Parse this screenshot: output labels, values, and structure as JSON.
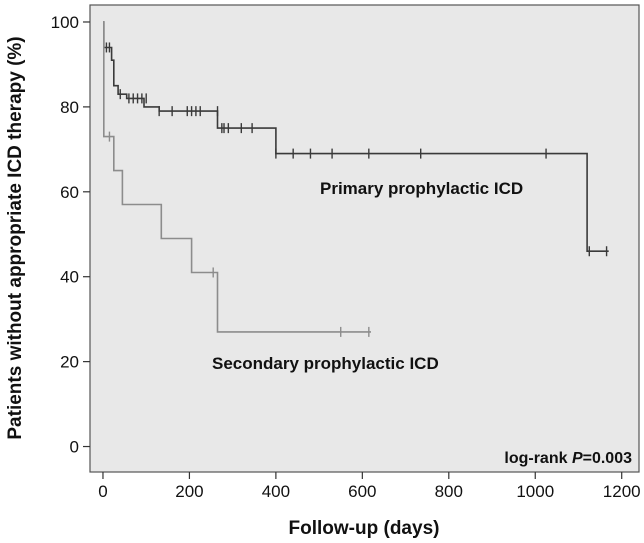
{
  "chart_data": {
    "type": "line",
    "step": true,
    "title": "",
    "xlabel": "Follow-up (days)",
    "ylabel": "Patients without appropriate ICD therapy (%)",
    "xlim": [
      -30,
      1240
    ],
    "ylim": [
      -6,
      104
    ],
    "xticks": [
      0,
      200,
      400,
      600,
      800,
      1000,
      1200
    ],
    "yticks": [
      0,
      20,
      40,
      60,
      80,
      100
    ],
    "grid": false,
    "background": "#e8e8e8",
    "annotation": {
      "prefix": "log-rank ",
      "italic": "P",
      "suffix": "=0.003"
    },
    "series": [
      {
        "name": "Primary prophylactic ICD",
        "color": "#3a3a3a",
        "steps": [
          [
            0,
            100
          ],
          [
            2,
            94
          ],
          [
            20,
            91
          ],
          [
            25,
            85
          ],
          [
            35,
            83
          ],
          [
            55,
            82
          ],
          [
            95,
            80
          ],
          [
            130,
            79
          ],
          [
            265,
            75
          ],
          [
            400,
            69
          ],
          [
            1120,
            46
          ],
          [
            1170,
            46
          ]
        ],
        "censored": [
          [
            8,
            94
          ],
          [
            15,
            94
          ],
          [
            40,
            83
          ],
          [
            60,
            82
          ],
          [
            70,
            82
          ],
          [
            80,
            82
          ],
          [
            90,
            82
          ],
          [
            100,
            82
          ],
          [
            130,
            79
          ],
          [
            160,
            79
          ],
          [
            195,
            79
          ],
          [
            205,
            79
          ],
          [
            215,
            79
          ],
          [
            225,
            79
          ],
          [
            265,
            79
          ],
          [
            275,
            75
          ],
          [
            280,
            75
          ],
          [
            290,
            75
          ],
          [
            320,
            75
          ],
          [
            345,
            75
          ],
          [
            400,
            69
          ],
          [
            440,
            69
          ],
          [
            480,
            69
          ],
          [
            530,
            69
          ],
          [
            615,
            69
          ],
          [
            735,
            69
          ],
          [
            1025,
            69
          ],
          [
            1125,
            46
          ],
          [
            1165,
            46
          ]
        ]
      },
      {
        "name": "Secondary prophylactic ICD",
        "color": "#8c8c8c",
        "steps": [
          [
            0,
            100
          ],
          [
            2,
            73
          ],
          [
            20,
            73
          ],
          [
            25,
            65
          ],
          [
            45,
            57
          ],
          [
            135,
            49
          ],
          [
            205,
            41
          ],
          [
            265,
            27
          ],
          [
            620,
            27
          ]
        ],
        "censored": [
          [
            15,
            73
          ],
          [
            255,
            41
          ],
          [
            550,
            27
          ],
          [
            615,
            27
          ]
        ]
      }
    ]
  }
}
